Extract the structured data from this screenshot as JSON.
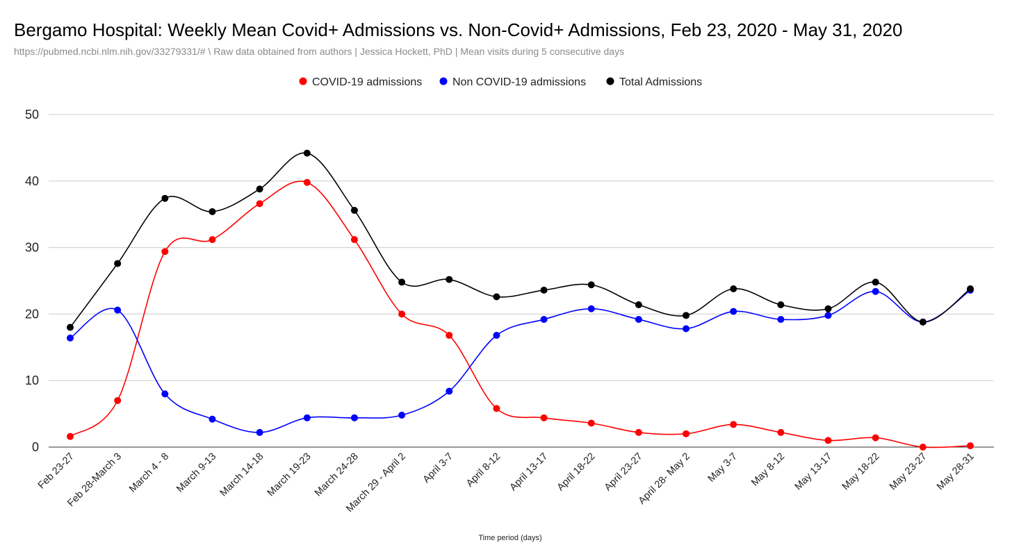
{
  "chart_data": {
    "type": "line",
    "title": "Bergamo Hospital: Weekly Mean Covid+ Admissions vs. Non-Covid+ Admissions, Feb 23, 2020 - May 31, 2020",
    "subtitle": "https://pubmed.ncbi.nlm.nih.gov/33279331/# \\ Raw data obtained from authors | Jessica Hockett, PhD | Mean visits during 5 consecutive days",
    "xlabel": "Time period (days)",
    "ylabel": "",
    "ylim": [
      0,
      50
    ],
    "yticks": [
      "0",
      "10",
      "20",
      "30",
      "40",
      "50"
    ],
    "grid": true,
    "legend_position": "top-center",
    "categories": [
      "Feb 23-27",
      "Feb 28-March 3",
      "March 4 - 8",
      "March 9-13",
      "March 14-18",
      "March 19-23",
      "March 24-28",
      "March 29 - April 2",
      "April 3-7",
      "April 8-12",
      "April 13-17",
      "April 18-22",
      "April 23-27",
      "April 28- May 2",
      "May 3-7",
      "May 8-12",
      "May 13-17",
      "May 18-22",
      "May 23-27",
      "May 28-31"
    ],
    "series": [
      {
        "name": "COVID-19 admissions",
        "color": "#ff0000",
        "values": [
          1.6,
          7.0,
          29.4,
          31.2,
          36.6,
          39.8,
          31.2,
          20.0,
          16.8,
          5.8,
          4.4,
          3.6,
          2.2,
          2.0,
          3.4,
          2.2,
          1.0,
          1.4,
          0.0,
          0.2
        ]
      },
      {
        "name": "Non COVID-19 admissions",
        "color": "#0000ff",
        "values": [
          16.4,
          20.6,
          8.0,
          4.2,
          2.2,
          4.4,
          4.4,
          4.8,
          8.4,
          16.8,
          19.2,
          20.8,
          19.2,
          17.8,
          20.4,
          19.2,
          19.8,
          23.4,
          18.8,
          23.6
        ]
      },
      {
        "name": "Total Admissions",
        "color": "#000000",
        "values": [
          18.0,
          27.6,
          37.4,
          35.4,
          38.8,
          44.2,
          35.6,
          24.8,
          25.2,
          22.6,
          23.6,
          24.4,
          21.4,
          19.8,
          23.8,
          21.4,
          20.8,
          24.8,
          18.8,
          23.8
        ]
      }
    ]
  }
}
